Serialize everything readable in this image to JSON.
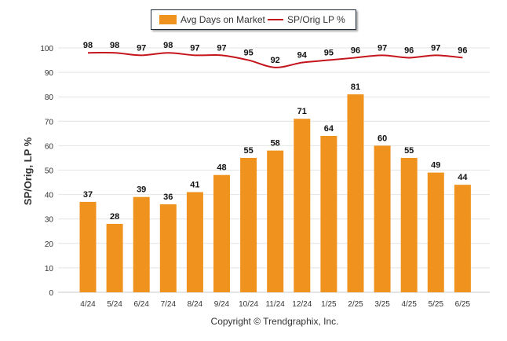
{
  "chart_data": {
    "type": "bar",
    "categories": [
      "4/24",
      "5/24",
      "6/24",
      "7/24",
      "8/24",
      "9/24",
      "10/24",
      "11/24",
      "12/24",
      "1/25",
      "2/25",
      "3/25",
      "4/25",
      "5/25",
      "6/25"
    ],
    "series": [
      {
        "name": "Avg Days on Market",
        "kind": "bar",
        "color": "#f0921e",
        "values": [
          37,
          28,
          39,
          36,
          41,
          48,
          55,
          58,
          71,
          64,
          81,
          60,
          55,
          49,
          44
        ]
      },
      {
        "name": "SP/Orig LP %",
        "kind": "line",
        "color": "#c4151c",
        "values": [
          98,
          98,
          97,
          98,
          97,
          97,
          95,
          92,
          94,
          95,
          96,
          97,
          96,
          97,
          96
        ]
      }
    ],
    "ylabel": "SP/Orig, LP %",
    "ylim": [
      0,
      100
    ],
    "yticks": [
      0,
      10,
      20,
      30,
      40,
      50,
      60,
      70,
      80,
      90,
      100
    ],
    "grid": true,
    "legend_position": "top-center"
  },
  "copyright": "Copyright © Trendgraphix, Inc."
}
